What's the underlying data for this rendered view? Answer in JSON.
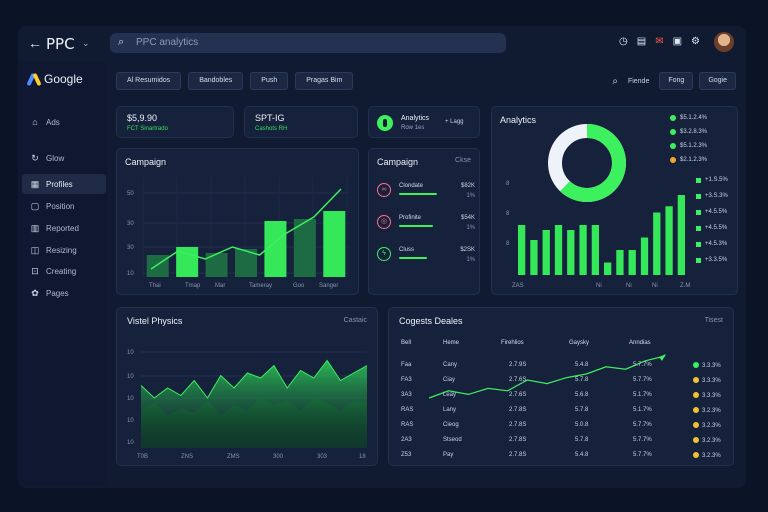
{
  "app": {
    "title": "PPC",
    "search_placeholder": "PPC analytics"
  },
  "topbar_icons": [
    "clock-icon",
    "calendar-icon",
    "mail-icon",
    "message-icon",
    "settings-icon"
  ],
  "sidebar": {
    "brand": "Google",
    "items": [
      {
        "label": "Ads",
        "icon": "home-icon"
      },
      {
        "label": "Glow",
        "icon": "refresh-icon"
      },
      {
        "label": "Profiles",
        "icon": "grid-icon"
      },
      {
        "label": "Position",
        "icon": "calendar-icon"
      },
      {
        "label": "Reported",
        "icon": "chart-icon"
      },
      {
        "label": "Resizing",
        "icon": "layers-icon"
      },
      {
        "label": "Creating",
        "icon": "lock-icon"
      },
      {
        "label": "Pages",
        "icon": "gear-icon"
      }
    ]
  },
  "filters": {
    "chips": [
      "Al Resumidos",
      "Bandobles",
      "Push",
      "Pragas Bim"
    ],
    "right_label": "Fiende",
    "right_buttons": [
      "Fong",
      "Gogie"
    ]
  },
  "kpi": [
    {
      "value": "$5,9.90",
      "sub": "FCT Sinartrado"
    },
    {
      "value": "SPT-IG",
      "sub": "Cashots RH"
    }
  ],
  "kpi_campaign": {
    "title": "Analytics",
    "sub": "Row 1es",
    "extra": "+ Lagg"
  },
  "campaign_chart": {
    "title": "Campaign",
    "y_ticks": [
      "50",
      "30",
      "30",
      "10"
    ],
    "x_ticks": [
      "Thai",
      "Tmap",
      "Mar",
      "Tameray",
      "Goo",
      "Sanger"
    ]
  },
  "campaigns": {
    "title": "Campaign",
    "sub": "Ckse",
    "rows": [
      {
        "name": "Clondate",
        "value": "$82K",
        "sub": "1%",
        "icon": "link-icon",
        "color": "#ff6d8a",
        "progress": 0.6
      },
      {
        "name": "Profinite",
        "value": "$54K",
        "sub": "1%",
        "icon": "target-icon",
        "color": "#ff6d8a",
        "progress": 0.55
      },
      {
        "name": "Cluss",
        "value": "$2SK",
        "sub": "1%",
        "icon": "bolt-icon",
        "color": "#3cf05e",
        "progress": 0.45
      }
    ]
  },
  "analytics": {
    "title": "Analytics",
    "donut_fraction": 0.62,
    "legend": [
      {
        "label": "$5.1.2.4%",
        "color": "#3cf05e"
      },
      {
        "label": "$3.2.8.3%",
        "color": "#3cf05e"
      },
      {
        "label": "$5.1.2.3%",
        "color": "#3cf05e"
      },
      {
        "label": "$2.1.2.3%",
        "color": "#f0a530"
      }
    ],
    "legend2": [
      "+1.S.5%",
      "+3.S.3%",
      "+4.5.5%",
      "+4.5.5%",
      "+4.5.3%",
      "+3.3.5%"
    ],
    "y_ticks": [
      "8",
      "8",
      "8"
    ],
    "x_ticks": [
      "ZAS",
      "Ni",
      "Ni",
      "Ni",
      "Z.M"
    ]
  },
  "visits": {
    "title": "Vistel Physics",
    "sub": "Castaic",
    "y_ticks": [
      "10",
      "10",
      "10",
      "10",
      "10"
    ],
    "x_ticks": [
      "T0B",
      "ZNS",
      "ZMS",
      "300",
      "303",
      "18"
    ]
  },
  "details": {
    "title": "Cogests Deales",
    "sub": "Tisest",
    "columns": [
      "Bell",
      "Heme",
      "Firehlios",
      "Gaysky",
      "Anndias"
    ],
    "rows": [
      {
        "c1": "Faa",
        "c2": "Cany",
        "c3": "2.7.9S",
        "c4": "5.4.8",
        "c5": "5.7.7%",
        "c6": "3.3.3%",
        "dot": "#3cf05e"
      },
      {
        "c1": "FA3",
        "c2": "Ciay",
        "c3": "2.7.6S",
        "c4": "5.7.8",
        "c5": "5.7.7%",
        "c6": "3.3.3%",
        "dot": "#f0c230"
      },
      {
        "c1": "3A3",
        "c2": "Leay",
        "c3": "2.7.6S",
        "c4": "5.6.8",
        "c5": "5.1.7%",
        "c6": "3.3.3%",
        "dot": "#f0c230"
      },
      {
        "c1": "RAS",
        "c2": "Lany",
        "c3": "2.7.8S",
        "c4": "5.7.8",
        "c5": "5.1.7%",
        "c6": "3.2.3%",
        "dot": "#f0c230"
      },
      {
        "c1": "RAS",
        "c2": "Cieog",
        "c3": "2.7.8S",
        "c4": "5.0.8",
        "c5": "5.7.7%",
        "c6": "3.2.3%",
        "dot": "#f0c230"
      },
      {
        "c1": "2A3",
        "c2": "Stseod",
        "c3": "2.7.8S",
        "c4": "5.7.8",
        "c5": "5.7.7%",
        "c6": "3.2.3%",
        "dot": "#f0c230"
      },
      {
        "c1": "Z53",
        "c2": "Pay",
        "c3": "2.7.8S",
        "c4": "5.4.8",
        "c5": "5.7.7%",
        "c6": "3.2.3%",
        "dot": "#f0c230"
      }
    ]
  },
  "chart_data": [
    {
      "type": "bar",
      "title": "Campaign",
      "bars": [
        22,
        30,
        24,
        28,
        56,
        58,
        66
      ],
      "line": [
        8,
        26,
        18,
        30,
        22,
        44,
        60,
        88
      ],
      "ylim": [
        0,
        100
      ]
    },
    {
      "type": "bar",
      "title": "Analytics",
      "values": [
        40,
        28,
        36,
        40,
        36,
        40,
        40,
        10,
        20,
        20,
        30,
        50,
        55,
        64
      ]
    },
    {
      "type": "area",
      "title": "Vistel Physics",
      "values": [
        50,
        40,
        48,
        42,
        54,
        40,
        58,
        48,
        60,
        56,
        66,
        48,
        62,
        56,
        70,
        54,
        60,
        66
      ],
      "shadow": [
        30,
        36,
        26,
        32,
        28,
        38,
        26,
        34,
        30,
        40,
        34,
        38,
        30,
        40,
        36,
        30,
        38,
        36
      ]
    },
    {
      "type": "line",
      "title": "Cogests Deales",
      "values": [
        10,
        22,
        16,
        26,
        22,
        40,
        34,
        44,
        50,
        62,
        58,
        72,
        80
      ]
    }
  ]
}
